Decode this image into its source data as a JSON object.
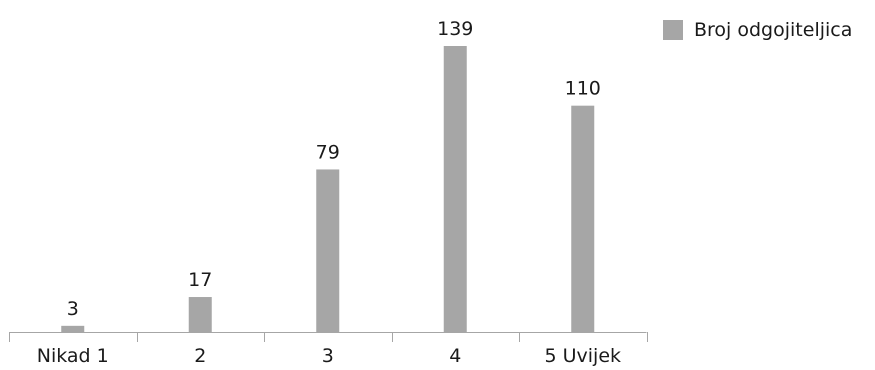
{
  "chart_data": {
    "type": "bar",
    "categories": [
      "Nikad 1",
      "2",
      "3",
      "4",
      "5 Uvijek"
    ],
    "series": [
      {
        "name": "Broj odgojiteljica",
        "values": [
          3,
          17,
          79,
          139,
          110
        ]
      }
    ],
    "data_labels": [
      "3",
      "17",
      "79",
      "139",
      "110"
    ],
    "title": "",
    "xlabel": "",
    "ylabel": "",
    "ylim": [
      0,
      139
    ],
    "grid": false,
    "legend_position": "top-right",
    "colors": {
      "bar": "#a6a6a6",
      "axis": "#a6a6a6",
      "text": "#1a1a1a"
    }
  }
}
